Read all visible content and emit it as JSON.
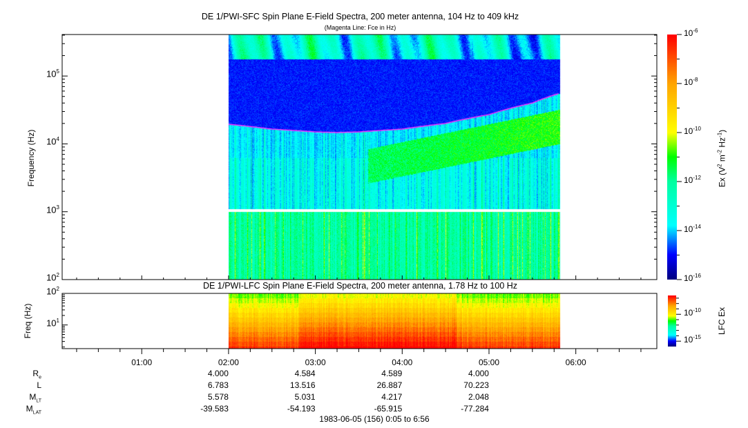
{
  "chart_data": [
    {
      "type": "heatmap",
      "title": "DE 1/PWI-SFC  Spin Plane E-Field Spectra, 200 meter antenna, 104 Hz to 409 kHz",
      "subtitle": "(Magenta Line: Fce in Hz)",
      "ylabel": "Frequency (Hz)",
      "yscale": "log",
      "ylim": [
        100,
        409000
      ],
      "yticks": [
        {
          "base": "10",
          "exp": "2",
          "value": 100
        },
        {
          "base": "10",
          "exp": "3",
          "value": 1000
        },
        {
          "base": "10",
          "exp": "4",
          "value": 10000
        },
        {
          "base": "10",
          "exp": "5",
          "value": 100000
        }
      ],
      "xlim_hours": [
        0.0833,
        6.9333
      ],
      "data_time_range_hours": [
        2.0,
        5.82
      ],
      "data_gap_hz": [
        1000,
        1100
      ],
      "colorbar": {
        "label_main": "Ex (V",
        "label_full": "Ex (V2 m-2 Hz-1)",
        "range_log10": [
          -16,
          -6
        ],
        "ticks": [
          {
            "base": "10",
            "exp": "-6",
            "value": -6
          },
          {
            "base": "10",
            "exp": "-8",
            "value": -8
          },
          {
            "base": "10",
            "exp": "-10",
            "value": -10
          },
          {
            "base": "10",
            "exp": "-12",
            "value": -12
          },
          {
            "base": "10",
            "exp": "-14",
            "value": -14
          },
          {
            "base": "10",
            "exp": "-16",
            "value": -16
          }
        ]
      },
      "fce_line": {
        "color": "#ff33ff",
        "points_hours_hz": [
          [
            2.0,
            19500
          ],
          [
            2.5,
            16500
          ],
          [
            3.0,
            15000
          ],
          [
            3.25,
            14700
          ],
          [
            3.5,
            15000
          ],
          [
            4.0,
            16500
          ],
          [
            4.5,
            20000
          ],
          [
            5.0,
            27000
          ],
          [
            5.5,
            40000
          ],
          [
            5.8,
            55000
          ]
        ]
      }
    },
    {
      "type": "heatmap",
      "title": "DE 1/PWI-LFC  Spin Plane E-Field Spectra, 200 meter antenna, 1.78 Hz to 100 Hz",
      "ylabel": "Freq (Hz)",
      "yscale": "log",
      "ylim": [
        1.78,
        100
      ],
      "yticks": [
        {
          "base": "10",
          "exp": "1",
          "value": 10
        },
        {
          "base": "10",
          "exp": "2",
          "value": 100
        }
      ],
      "xlim_hours": [
        0.0833,
        6.9333
      ],
      "data_time_range_hours": [
        2.0,
        5.82
      ],
      "colorbar": {
        "label": "LFC Ex",
        "range_log10": [
          -16,
          -6.5
        ],
        "ticks": [
          {
            "base": "10",
            "exp": "-10",
            "value": -10
          },
          {
            "base": "10",
            "exp": "-15",
            "value": -15
          }
        ]
      }
    }
  ],
  "xaxis": {
    "ticks": [
      {
        "label": "01:00",
        "hour": 1
      },
      {
        "label": "02:00",
        "hour": 2
      },
      {
        "label": "03:00",
        "hour": 3
      },
      {
        "label": "04:00",
        "hour": 4
      },
      {
        "label": "05:00",
        "hour": 5
      },
      {
        "label": "06:00",
        "hour": 6
      }
    ],
    "footer": "1983-06-05 (156) 0:05 to 6:56"
  },
  "ephemeris": {
    "rows": [
      {
        "label": "R",
        "sub": "e",
        "values": [
          "",
          "4.000",
          "4.584",
          "4.589",
          "4.000",
          ""
        ]
      },
      {
        "label": "L",
        "sub": "",
        "values": [
          "",
          "6.783",
          "13.516",
          "26.887",
          "70.223",
          ""
        ]
      },
      {
        "label": "M",
        "sub": "LT",
        "values": [
          "",
          "5.578",
          "5.031",
          "4.217",
          "2.048",
          ""
        ]
      },
      {
        "label": "M",
        "sub": "LAT",
        "values": [
          "",
          "-39.583",
          "-54.193",
          "-65.915",
          "-77.284",
          ""
        ]
      }
    ]
  }
}
